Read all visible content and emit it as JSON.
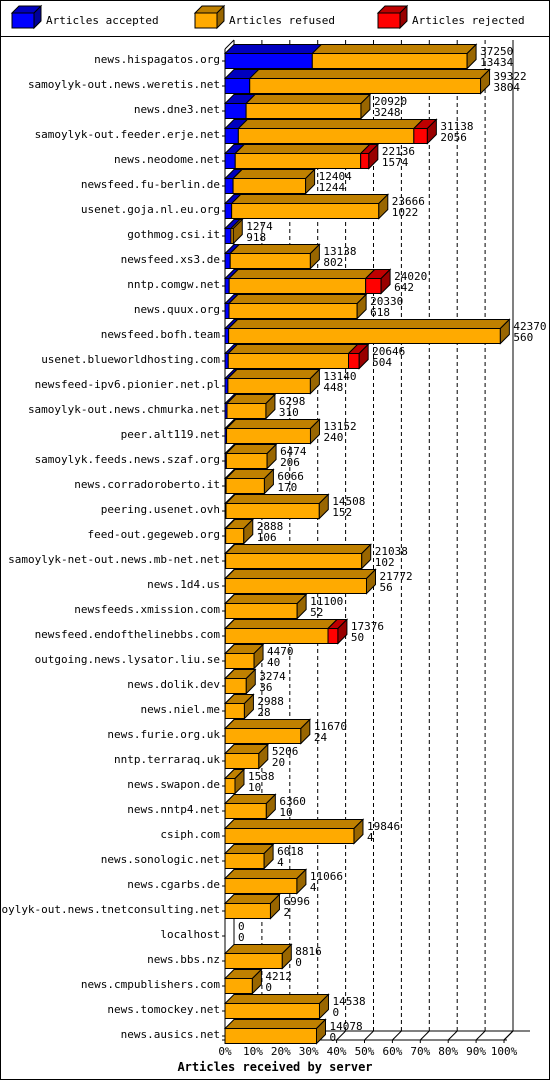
{
  "chart_data": {
    "type": "bar",
    "stacked": true,
    "orientation": "horizontal",
    "xlabel": "Articles received by server",
    "xticks": [
      "0%",
      "10%",
      "20%",
      "30%",
      "40%",
      "50%",
      "60%",
      "70%",
      "80%",
      "90%",
      "100%"
    ],
    "xlim": [
      0,
      100
    ],
    "scale_max": 42930,
    "grid": true,
    "legend_position": "top",
    "legend": [
      {
        "name": "Articles accepted",
        "color": "#0000ff"
      },
      {
        "name": "Articles refused",
        "color": "#ffaa00"
      },
      {
        "name": "Articles rejected",
        "color": "#ff0000"
      }
    ],
    "rows": [
      {
        "server": "news.hispagatos.org",
        "total_label": "37250",
        "accepted_label": "13434",
        "accepted": 13434,
        "refused": 23816,
        "rejected": 0
      },
      {
        "server": "samoylyk-out.news.weretis.net",
        "total_label": "39322",
        "accepted_label": "3804",
        "accepted": 3804,
        "refused": 35518,
        "rejected": 0
      },
      {
        "server": "news.dne3.net",
        "total_label": "20920",
        "accepted_label": "3248",
        "accepted": 3248,
        "refused": 17672,
        "rejected": 0
      },
      {
        "server": "samoylyk-out.feeder.erje.net",
        "total_label": "31138",
        "accepted_label": "2056",
        "accepted": 2056,
        "refused": 27000,
        "rejected": 2082
      },
      {
        "server": "news.neodome.net",
        "total_label": "22136",
        "accepted_label": "1574",
        "accepted": 1574,
        "refused": 19300,
        "rejected": 1262
      },
      {
        "server": "newsfeed.fu-berlin.de",
        "total_label": "12404",
        "accepted_label": "1244",
        "accepted": 1244,
        "refused": 11160,
        "rejected": 0
      },
      {
        "server": "usenet.goja.nl.eu.org",
        "total_label": "23666",
        "accepted_label": "1022",
        "accepted": 1022,
        "refused": 22644,
        "rejected": 0
      },
      {
        "server": "gothmog.csi.it",
        "total_label": "1274",
        "accepted_label": "918",
        "accepted": 918,
        "refused": 356,
        "rejected": 0
      },
      {
        "server": "newsfeed.xs3.de",
        "total_label": "13138",
        "accepted_label": "802",
        "accepted": 802,
        "refused": 12336,
        "rejected": 0
      },
      {
        "server": "nntp.comgw.net",
        "total_label": "24020",
        "accepted_label": "642",
        "accepted": 642,
        "refused": 21000,
        "rejected": 2378
      },
      {
        "server": "news.quux.org",
        "total_label": "20330",
        "accepted_label": "618",
        "accepted": 618,
        "refused": 19712,
        "rejected": 0
      },
      {
        "server": "newsfeed.bofh.team",
        "total_label": "42370",
        "accepted_label": "560",
        "accepted": 560,
        "refused": 41810,
        "rejected": 0
      },
      {
        "server": "usenet.blueworldhosting.com",
        "total_label": "20646",
        "accepted_label": "504",
        "accepted": 504,
        "refused": 18500,
        "rejected": 1642
      },
      {
        "server": "newsfeed-ipv6.pionier.net.pl",
        "total_label": "13140",
        "accepted_label": "448",
        "accepted": 448,
        "refused": 12692,
        "rejected": 0
      },
      {
        "server": "samoylyk-out.news.chmurka.net",
        "total_label": "6298",
        "accepted_label": "310",
        "accepted": 310,
        "refused": 5988,
        "rejected": 0
      },
      {
        "server": "peer.alt119.net",
        "total_label": "13152",
        "accepted_label": "240",
        "accepted": 240,
        "refused": 12912,
        "rejected": 0
      },
      {
        "server": "samoylyk.feeds.news.szaf.org",
        "total_label": "6474",
        "accepted_label": "206",
        "accepted": 206,
        "refused": 6268,
        "rejected": 0
      },
      {
        "server": "news.corradoroberto.it",
        "total_label": "6066",
        "accepted_label": "170",
        "accepted": 170,
        "refused": 5896,
        "rejected": 0
      },
      {
        "server": "peering.usenet.ovh",
        "total_label": "14508",
        "accepted_label": "152",
        "accepted": 152,
        "refused": 14356,
        "rejected": 0
      },
      {
        "server": "feed-out.gegeweb.org",
        "total_label": "2888",
        "accepted_label": "106",
        "accepted": 106,
        "refused": 2782,
        "rejected": 0
      },
      {
        "server": "samoylyk-net-out.news.mb-net.net",
        "total_label": "21038",
        "accepted_label": "102",
        "accepted": 102,
        "refused": 20936,
        "rejected": 0
      },
      {
        "server": "news.1d4.us",
        "total_label": "21772",
        "accepted_label": "56",
        "accepted": 56,
        "refused": 21716,
        "rejected": 0
      },
      {
        "server": "newsfeeds.xmission.com",
        "total_label": "11100",
        "accepted_label": "52",
        "accepted": 52,
        "refused": 11048,
        "rejected": 0
      },
      {
        "server": "newsfeed.endofthelinebbs.com",
        "total_label": "17376",
        "accepted_label": "50",
        "accepted": 50,
        "refused": 15800,
        "rejected": 1526
      },
      {
        "server": "outgoing.news.lysator.liu.se",
        "total_label": "4470",
        "accepted_label": "40",
        "accepted": 40,
        "refused": 4430,
        "rejected": 0
      },
      {
        "server": "news.dolik.dev",
        "total_label": "3274",
        "accepted_label": "36",
        "accepted": 36,
        "refused": 3238,
        "rejected": 0
      },
      {
        "server": "news.niel.me",
        "total_label": "2988",
        "accepted_label": "28",
        "accepted": 28,
        "refused": 2960,
        "rejected": 0
      },
      {
        "server": "news.furie.org.uk",
        "total_label": "11670",
        "accepted_label": "24",
        "accepted": 24,
        "refused": 11646,
        "rejected": 0
      },
      {
        "server": "nntp.terraraq.uk",
        "total_label": "5206",
        "accepted_label": "20",
        "accepted": 20,
        "refused": 5186,
        "rejected": 0
      },
      {
        "server": "news.swapon.de",
        "total_label": "1538",
        "accepted_label": "10",
        "accepted": 10,
        "refused": 1528,
        "rejected": 0
      },
      {
        "server": "news.nntp4.net",
        "total_label": "6360",
        "accepted_label": "10",
        "accepted": 10,
        "refused": 6350,
        "rejected": 0
      },
      {
        "server": "csiph.com",
        "total_label": "19846",
        "accepted_label": "4",
        "accepted": 4,
        "refused": 19842,
        "rejected": 0
      },
      {
        "server": "news.sonologic.net",
        "total_label": "6018",
        "accepted_label": "4",
        "accepted": 4,
        "refused": 6014,
        "rejected": 0
      },
      {
        "server": "news.cgarbs.de",
        "total_label": "11066",
        "accepted_label": "4",
        "accepted": 4,
        "refused": 11062,
        "rejected": 0
      },
      {
        "server": "samoylyk-out.news.tnetconsulting.net",
        "total_label": "6996",
        "accepted_label": "2",
        "accepted": 2,
        "refused": 6994,
        "rejected": 0
      },
      {
        "server": "localhost",
        "total_label": "0",
        "accepted_label": "0",
        "accepted": 0,
        "refused": 0,
        "rejected": 0
      },
      {
        "server": "news.bbs.nz",
        "total_label": "8816",
        "accepted_label": "0",
        "accepted": 0,
        "refused": 8816,
        "rejected": 0
      },
      {
        "server": "news.cmpublishers.com",
        "total_label": "4212",
        "accepted_label": "0",
        "accepted": 0,
        "refused": 4212,
        "rejected": 0
      },
      {
        "server": "news.tomockey.net",
        "total_label": "14538",
        "accepted_label": "0",
        "accepted": 0,
        "refused": 14538,
        "rejected": 0
      },
      {
        "server": "news.ausics.net",
        "total_label": "14078",
        "accepted_label": "0",
        "accepted": 0,
        "refused": 14078,
        "rejected": 0
      }
    ]
  }
}
